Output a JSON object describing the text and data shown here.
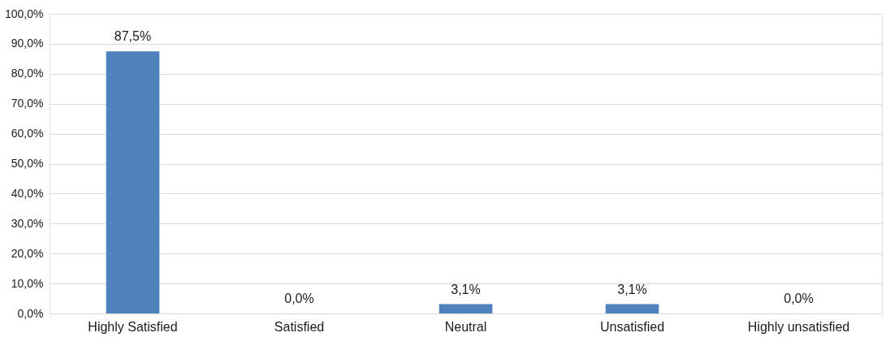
{
  "chart_data": {
    "type": "bar",
    "categories": [
      "Highly Satisfied",
      "Satisfied",
      "Neutral",
      "Unsatisfied",
      "Highly unsatisfied"
    ],
    "values": [
      87.5,
      0,
      3.1,
      3.1,
      0
    ],
    "value_labels": [
      "87,5%",
      "0,0%",
      "3,1%",
      "3,1%",
      "0,0%"
    ],
    "color": "#4f81bd",
    "ylim": [
      0,
      100
    ],
    "yticks": [
      {
        "value": 0,
        "label": "0,0%"
      },
      {
        "value": 10,
        "label": "10,0%"
      },
      {
        "value": 20,
        "label": "20,0%"
      },
      {
        "value": 30,
        "label": "30,0%"
      },
      {
        "value": 40,
        "label": "40,0%"
      },
      {
        "value": 50,
        "label": "50,0%"
      },
      {
        "value": 60,
        "label": "60,0%"
      },
      {
        "value": 70,
        "label": "70,0%"
      },
      {
        "value": 80,
        "label": "80,0%"
      },
      {
        "value": 90,
        "label": "90,0%"
      },
      {
        "value": 100,
        "label": "100,0%"
      }
    ],
    "grid": "y"
  }
}
